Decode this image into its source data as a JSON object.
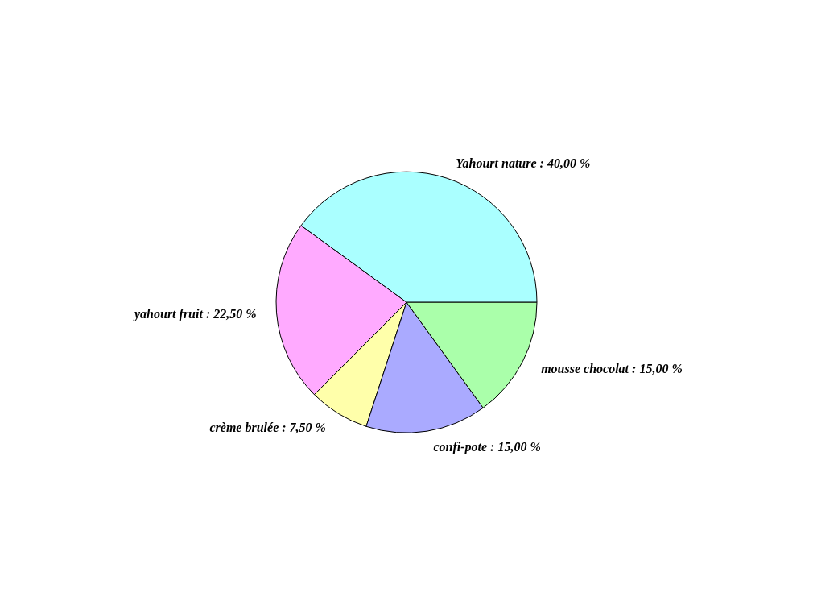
{
  "chart_data": {
    "type": "pie",
    "categories": [
      "Yahourt nature",
      "yahourt fruit",
      "crème brulée",
      "confi-pote",
      "mousse chocolat"
    ],
    "values": [
      40,
      22.5,
      7.5,
      15,
      15
    ],
    "value_labels": [
      "40,00 %",
      "22,50 %",
      "7,50 %",
      "15,00 %",
      "15,00 %"
    ],
    "colors": [
      "#aaffff",
      "#ffaaff",
      "#ffffaa",
      "#aaaaff",
      "#aaffaa"
    ],
    "legend": false
  }
}
